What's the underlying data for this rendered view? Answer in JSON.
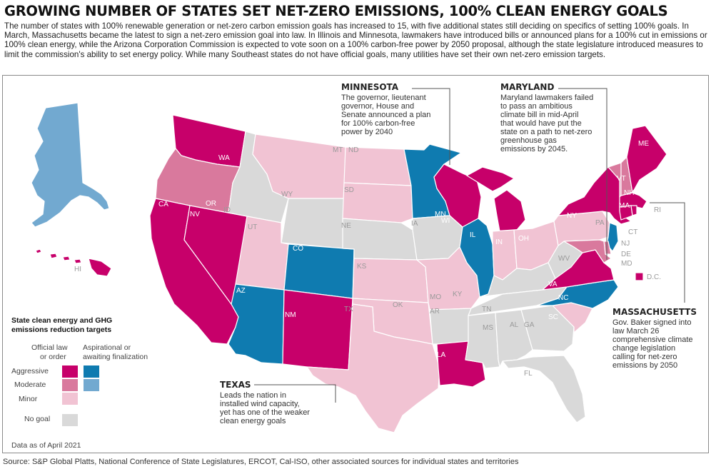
{
  "header": {
    "title": "GROWING NUMBER OF STATES SET NET-ZERO EMISSIONS, 100% CLEAN ENERGY GOALS",
    "subtitle": "The number of states with 100% renewable generation or net-zero carbon emission goals has increased to 15, with five additional states still deciding on specifics of setting 100% goals. In March, Massachusetts became the latest to sign a net-zero emission goal into law. In Illinois and Minnesota, lawmakers have introduced bills or announced plans for a 100% cut in emissions or 100% clean energy, while the Arizona Corporation Commission is expected to vote soon on a 100% carbon-free power by 2050 proposal, although the state legislature introduced measures to limit the commission's ability to set energy policy. While many Southeast states do not have official goals, many utilities have set their own net-zero emission targets."
  },
  "colors": {
    "official_aggressive": "#c7006a",
    "official_moderate": "#d9799d",
    "official_minor": "#f1c3d3",
    "aspirational_aggressive": "#0f7bb0",
    "aspirational_moderate": "#72a9d0",
    "no_goal": "#d9d9d9"
  },
  "legend": {
    "title_line1": "State clean energy and GHG",
    "title_line2": "emissions reduction targets",
    "col1_line1": "Official law",
    "col1_line2": "or order",
    "col2_line1": "Aspirational or",
    "col2_line2": "awaiting finalization",
    "rows": [
      "Aggressive",
      "Moderate",
      "Minor"
    ],
    "no_goal": "No goal",
    "date_note": "Data as of April 2021",
    "dc_label": "D.C."
  },
  "annotations": {
    "minnesota": {
      "title": "MINNESOTA",
      "lines": [
        "The governor, lieutenant",
        "governor, House and",
        "Senate announced a plan",
        "for 100% carbon-free",
        "power by 2040"
      ]
    },
    "maryland": {
      "title": "MARYLAND",
      "lines": [
        "Maryland lawmakers failed",
        "to pass an ambitious",
        "climate bill in mid-April",
        "that would have put the",
        "state on a path to net-zero",
        "greenhouse gas",
        "emissions by 2045."
      ]
    },
    "massachusetts": {
      "title": "MASSACHUSETTS",
      "lines": [
        "Gov. Baker signed into",
        "law March 26",
        "comprehensive climate",
        "change legislation",
        "calling for net-zero",
        "emissions by 2050"
      ]
    },
    "texas": {
      "title": "TEXAS",
      "lines": [
        "Leads the nation in",
        "installed wind capacity,",
        "yet has one of the weaker",
        "clean energy goals"
      ]
    }
  },
  "states": [
    {
      "code": "AK",
      "category": "aspirational_moderate"
    },
    {
      "code": "HI",
      "category": "official_aggressive"
    },
    {
      "code": "WA",
      "category": "official_aggressive"
    },
    {
      "code": "OR",
      "category": "official_moderate"
    },
    {
      "code": "CA",
      "category": "official_aggressive"
    },
    {
      "code": "NV",
      "category": "official_aggressive"
    },
    {
      "code": "ID",
      "category": "no_goal"
    },
    {
      "code": "MT",
      "category": "official_minor"
    },
    {
      "code": "WY",
      "category": "no_goal"
    },
    {
      "code": "UT",
      "category": "official_minor"
    },
    {
      "code": "CO",
      "category": "aspirational_aggressive"
    },
    {
      "code": "AZ",
      "category": "aspirational_aggressive"
    },
    {
      "code": "NM",
      "category": "official_aggressive"
    },
    {
      "code": "ND",
      "category": "official_minor"
    },
    {
      "code": "SD",
      "category": "official_minor"
    },
    {
      "code": "NE",
      "category": "no_goal"
    },
    {
      "code": "KS",
      "category": "official_minor"
    },
    {
      "code": "OK",
      "category": "official_minor"
    },
    {
      "code": "TX",
      "category": "official_minor"
    },
    {
      "code": "MN",
      "category": "aspirational_aggressive"
    },
    {
      "code": "IA",
      "category": "no_goal"
    },
    {
      "code": "MO",
      "category": "official_minor"
    },
    {
      "code": "AR",
      "category": "no_goal"
    },
    {
      "code": "LA",
      "category": "official_aggressive"
    },
    {
      "code": "WI",
      "category": "official_aggressive"
    },
    {
      "code": "IL",
      "category": "aspirational_aggressive"
    },
    {
      "code": "MI",
      "category": "official_aggressive"
    },
    {
      "code": "IN",
      "category": "official_minor"
    },
    {
      "code": "OH",
      "category": "official_minor"
    },
    {
      "code": "KY",
      "category": "no_goal"
    },
    {
      "code": "TN",
      "category": "no_goal"
    },
    {
      "code": "MS",
      "category": "no_goal"
    },
    {
      "code": "AL",
      "category": "no_goal"
    },
    {
      "code": "GA",
      "category": "no_goal"
    },
    {
      "code": "FL",
      "category": "no_goal"
    },
    {
      "code": "SC",
      "category": "official_minor"
    },
    {
      "code": "NC",
      "category": "aspirational_aggressive"
    },
    {
      "code": "VA",
      "category": "official_aggressive"
    },
    {
      "code": "WV",
      "category": "no_goal"
    },
    {
      "code": "PA",
      "category": "official_minor"
    },
    {
      "code": "NY",
      "category": "official_aggressive"
    },
    {
      "code": "VT",
      "category": "official_moderate"
    },
    {
      "code": "NH",
      "category": "official_moderate"
    },
    {
      "code": "ME",
      "category": "official_aggressive"
    },
    {
      "code": "MA",
      "category": "official_aggressive"
    },
    {
      "code": "RI",
      "category": "official_aggressive"
    },
    {
      "code": "CT",
      "category": "official_aggressive"
    },
    {
      "code": "NJ",
      "category": "aspirational_aggressive"
    },
    {
      "code": "DE",
      "category": "official_moderate"
    },
    {
      "code": "MD",
      "category": "official_moderate"
    },
    {
      "code": "DC",
      "category": "official_aggressive"
    }
  ],
  "footer": {
    "source": "Source: S&P Global Platts, National Conference of State Legislatures, ERCOT, Cal-ISO, other associated sources for individual states and territories"
  }
}
